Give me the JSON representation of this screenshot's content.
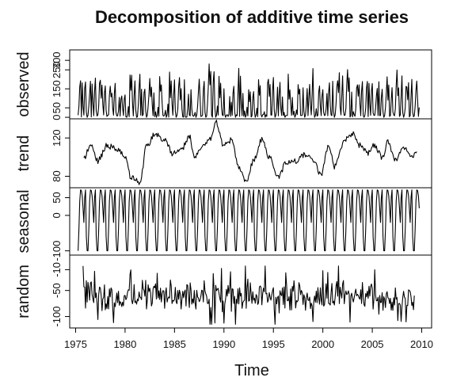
{
  "chart_data": {
    "type": "line",
    "title": "Decomposition of additive time series",
    "xlabel": "Time",
    "x_start": 1975.25,
    "x_end": 2009.75,
    "frequency": 12,
    "xlim": [
      1974.4,
      2011.0
    ],
    "x_ticks": [
      1975,
      1980,
      1985,
      1990,
      1995,
      2000,
      2005,
      2010
    ],
    "x_tick_labels": [
      "1975",
      "1980",
      "1985",
      "1990",
      "1995",
      "2000",
      "2005",
      "2010"
    ],
    "panels": [
      {
        "name": "observed",
        "ylabel": "observed",
        "ylim": [
          -8,
          355
        ],
        "y_ticks": [
          0,
          50,
          150,
          250,
          300
        ],
        "y_tick_labels": [
          "0",
          "50",
          "150",
          "250",
          "300"
        ],
        "kind": "spiky",
        "yearly_peaks": [
          262,
          245,
          280,
          225,
          190,
          270,
          250,
          240,
          265,
          285,
          230,
          215,
          260,
          340,
          255,
          265,
          270,
          215,
          250,
          270,
          230,
          260,
          235,
          290,
          245,
          265,
          280,
          255,
          240,
          230,
          225,
          215,
          250,
          235,
          240
        ],
        "trough": 0
      },
      {
        "name": "trend",
        "ylabel": "trend",
        "ylim": [
          68,
          140
        ],
        "y_ticks": [
          80,
          120
        ],
        "y_tick_labels": [
          "80",
          "120"
        ],
        "kind": "smooth",
        "knots": [
          [
            1975.8,
            98
          ],
          [
            1976.5,
            112
          ],
          [
            1977.2,
            96
          ],
          [
            1978.2,
            112
          ],
          [
            1979.2,
            108
          ],
          [
            1980.0,
            100
          ],
          [
            1980.6,
            78
          ],
          [
            1981.5,
            74
          ],
          [
            1982.2,
            112
          ],
          [
            1983.0,
            124
          ],
          [
            1984.0,
            118
          ],
          [
            1984.8,
            104
          ],
          [
            1985.7,
            108
          ],
          [
            1986.5,
            122
          ],
          [
            1987.0,
            100
          ],
          [
            1987.8,
            112
          ],
          [
            1988.6,
            118
          ],
          [
            1989.2,
            136
          ],
          [
            1990.0,
            112
          ],
          [
            1990.8,
            118
          ],
          [
            1991.5,
            90
          ],
          [
            1992.2,
            74
          ],
          [
            1993.0,
            96
          ],
          [
            1993.8,
            118
          ],
          [
            1994.6,
            100
          ],
          [
            1995.5,
            80
          ],
          [
            1996.3,
            94
          ],
          [
            1997.2,
            96
          ],
          [
            1998.2,
            102
          ],
          [
            1999.0,
            96
          ],
          [
            1999.8,
            82
          ],
          [
            2000.6,
            112
          ],
          [
            2001.2,
            90
          ],
          [
            2002.2,
            118
          ],
          [
            2003.0,
            124
          ],
          [
            2003.8,
            112
          ],
          [
            2004.5,
            104
          ],
          [
            2005.2,
            112
          ],
          [
            2006.0,
            100
          ],
          [
            2006.6,
            116
          ],
          [
            2007.3,
            96
          ],
          [
            2008.2,
            110
          ],
          [
            2009.0,
            100
          ],
          [
            2009.5,
            104
          ]
        ]
      },
      {
        "name": "seasonal",
        "ylabel": "seasonal",
        "ylim": [
          -112,
          78
        ],
        "y_ticks": [
          -100,
          0,
          50
        ],
        "y_tick_labels": [
          "-100",
          "0",
          "50"
        ],
        "kind": "seasonal",
        "monthly_pattern": [
          -100,
          -40,
          40,
          72,
          70,
          55,
          20,
          -20,
          50,
          72,
          -60,
          -100
        ]
      },
      {
        "name": "random",
        "ylabel": "random",
        "ylim": [
          -122,
          18
        ],
        "y_ticks": [
          -100,
          -50,
          -10
        ],
        "y_tick_labels": [
          "-100",
          "-50",
          "-10"
        ],
        "kind": "noise",
        "center": -60,
        "spread": 22,
        "min": -115,
        "max": -3
      }
    ]
  }
}
